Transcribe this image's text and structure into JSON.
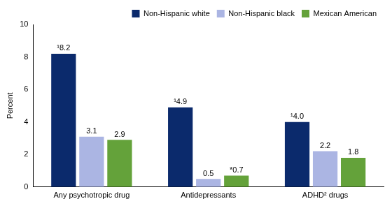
{
  "chart_data": {
    "type": "bar",
    "categories": [
      "Any psychotropic drug",
      "Antidepressants",
      "ADHD² drugs"
    ],
    "ylabel": "Percent",
    "series": [
      {
        "name": "Non-Hispanic white",
        "color": "#0b2a6c",
        "values": [
          8.2,
          4.9,
          4.0
        ],
        "value_labels": [
          "¹8.2",
          "¹4.9",
          "¹4.0"
        ]
      },
      {
        "name": "Non-Hispanic black",
        "color": "#abb5e3",
        "values": [
          3.1,
          0.5,
          2.2
        ],
        "value_labels": [
          "3.1",
          "0.5",
          "2.2"
        ]
      },
      {
        "name": "Mexican American",
        "color": "#64a23a",
        "values": [
          2.9,
          0.7,
          1.8
        ],
        "value_labels": [
          "2.9",
          "*0.7",
          "1.8"
        ]
      }
    ],
    "ylim": [
      0,
      10
    ],
    "yticks": [
      0,
      2,
      4,
      6,
      8,
      10
    ],
    "grid": false,
    "legend": "top-right",
    "data_labels": true
  }
}
